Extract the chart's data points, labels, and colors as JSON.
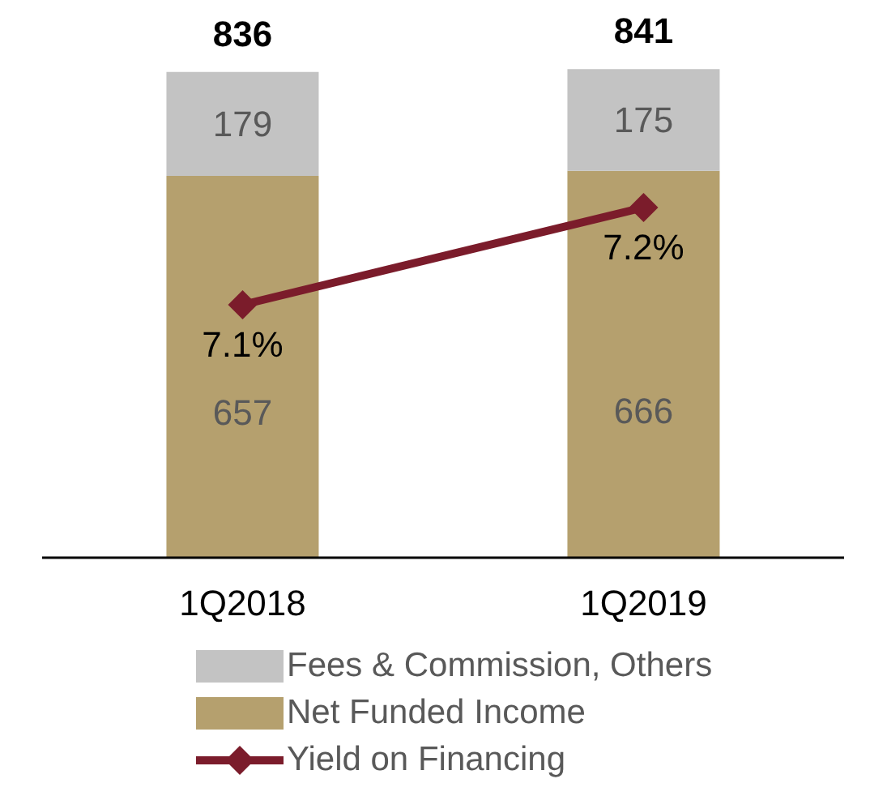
{
  "chart_data": {
    "type": "bar",
    "stacked": true,
    "categories": [
      "1Q2018",
      "1Q2019"
    ],
    "series": [
      {
        "name": "Net Funded Income",
        "color": "#b5a06e",
        "values": [
          657,
          666
        ],
        "value_labels": [
          "657",
          "666"
        ]
      },
      {
        "name": "Fees & Commission, Others",
        "color": "#c3c3c3",
        "values": [
          179,
          175
        ],
        "value_labels": [
          "179",
          "175"
        ]
      },
      {
        "name": "Yield on Financing",
        "type": "line",
        "axis": "y2",
        "color": "#7b1c2b",
        "values": [
          7.1,
          7.2
        ],
        "value_labels": [
          "7.1%",
          "7.2%"
        ]
      }
    ],
    "totals": [
      "836",
      "841"
    ],
    "tick_labels": "x",
    "grid": false,
    "legend": "bottom",
    "marker": "diamond",
    "line_style": "solid"
  }
}
